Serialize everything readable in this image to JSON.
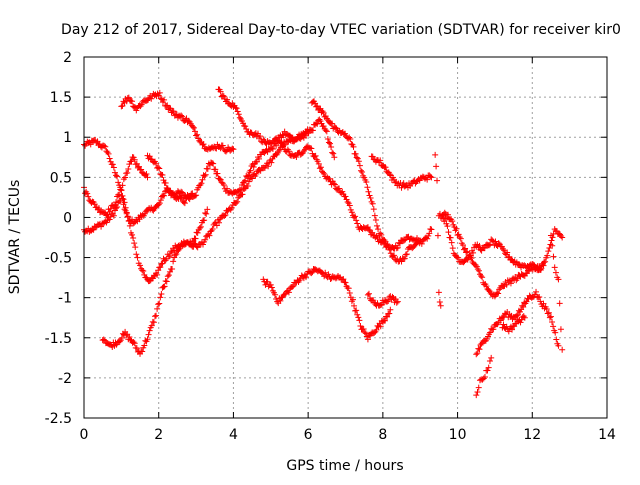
{
  "chart_data": {
    "type": "scatter",
    "title": "Day 212 of 2017, Sidereal Day-to-day VTEC variation (SDTVAR) for receiver kir0",
    "xlabel": "GPS time / hours",
    "ylabel": "SDTVAR / TECUs",
    "xlim": [
      0,
      14
    ],
    "ylim": [
      -2.5,
      2
    ],
    "xticks": [
      "0",
      "2",
      "4",
      "6",
      "8",
      "10",
      "12",
      "14"
    ],
    "yticks": [
      "-2.5",
      "-2",
      "-1.5",
      "-1",
      "-0.5",
      "0",
      "0.5",
      "1",
      "1.5",
      "2"
    ],
    "grid": true,
    "marker": "+",
    "color": "#ff0000",
    "series": [
      {
        "x": [
          0.0,
          0.3,
          0.6,
          0.8,
          1.0,
          1.1,
          1.3,
          1.5,
          1.7
        ],
        "y": [
          0.9,
          0.95,
          0.85,
          0.6,
          0.35,
          0.5,
          0.75,
          0.6,
          0.5
        ]
      },
      {
        "x": [
          0.0,
          0.2,
          0.4,
          0.6,
          0.8,
          1.0,
          1.2,
          1.4,
          1.6,
          1.8,
          2.0,
          2.2,
          2.4,
          2.6,
          2.8,
          3.0,
          3.2,
          3.4,
          3.6,
          3.8,
          4.0,
          4.2,
          4.4,
          4.6,
          4.8,
          5.0,
          5.2,
          5.4,
          5.6,
          5.8,
          6.0,
          6.2,
          6.4,
          6.6,
          6.8,
          7.0,
          7.2,
          7.4,
          7.6,
          7.8,
          8.0,
          8.2,
          8.4,
          8.6,
          8.8,
          9.0
        ],
        "y": [
          -0.15,
          -0.15,
          -0.1,
          -0.05,
          0.05,
          0.25,
          -0.05,
          -0.05,
          0.05,
          0.1,
          0.15,
          0.35,
          0.3,
          0.3,
          0.25,
          0.3,
          0.5,
          0.7,
          0.5,
          0.35,
          0.3,
          0.35,
          0.55,
          0.7,
          0.8,
          0.85,
          0.95,
          0.85,
          0.75,
          0.8,
          0.9,
          0.75,
          0.55,
          0.45,
          0.35,
          0.25,
          0.05,
          -0.15,
          -0.15,
          -0.25,
          -0.3,
          -0.4,
          -0.35,
          -0.25,
          -0.25,
          -0.3
        ]
      },
      {
        "x": [
          0.0,
          0.2,
          0.4,
          0.6,
          0.8,
          1.0,
          1.2,
          1.4,
          1.5,
          1.7,
          1.9,
          2.1,
          2.3,
          2.5,
          2.7,
          2.9,
          3.1,
          3.3
        ],
        "y": [
          0.35,
          0.2,
          0.1,
          0.05,
          0.15,
          0.35,
          -0.05,
          -0.45,
          -0.6,
          -0.8,
          -0.75,
          -0.55,
          -0.45,
          -0.35,
          -0.35,
          -0.3,
          -0.15,
          0.1
        ]
      },
      {
        "x": [
          0.5,
          0.7,
          0.9,
          1.1,
          1.3,
          1.5,
          1.7,
          1.9,
          2.1,
          2.3,
          2.5,
          2.7,
          2.9,
          3.1,
          3.3,
          3.5,
          3.7,
          3.9,
          4.1,
          4.3,
          4.5,
          4.7,
          4.9,
          5.1,
          5.3,
          5.5,
          5.7,
          5.9,
          6.1,
          6.3,
          6.5,
          6.7
        ],
        "y": [
          -1.5,
          -1.6,
          -1.55,
          -1.45,
          -1.55,
          -1.7,
          -1.5,
          -1.25,
          -0.9,
          -0.7,
          -0.4,
          -0.3,
          -0.35,
          -0.35,
          -0.25,
          -0.1,
          0.0,
          0.1,
          0.2,
          0.35,
          0.5,
          0.6,
          0.65,
          0.75,
          0.9,
          0.95,
          1.0,
          1.05,
          1.1,
          1.2,
          1.05,
          0.75
        ]
      },
      {
        "x": [
          1.0,
          1.2,
          1.4,
          1.6,
          1.8,
          2.0,
          2.2,
          2.4,
          2.6,
          2.8,
          3.0,
          3.2,
          3.4,
          3.6,
          3.8,
          4.0
        ],
        "y": [
          1.4,
          1.5,
          1.35,
          1.45,
          1.5,
          1.55,
          1.4,
          1.3,
          1.25,
          1.2,
          1.05,
          0.9,
          0.85,
          0.9,
          0.85,
          0.85
        ]
      },
      {
        "x": [
          1.7,
          1.9,
          2.1,
          2.3,
          2.5,
          2.7,
          2.9
        ],
        "y": [
          0.75,
          0.7,
          0.5,
          0.3,
          0.25,
          0.2,
          0.3
        ]
      },
      {
        "x": [
          3.6,
          3.8,
          4.0,
          4.2,
          4.4,
          4.6,
          4.8,
          5.0,
          5.2,
          5.4,
          5.6,
          5.8,
          6.0
        ],
        "y": [
          1.6,
          1.45,
          1.4,
          1.25,
          1.05,
          1.05,
          0.95,
          0.9,
          1.0,
          1.05,
          0.95,
          1.0,
          1.05
        ]
      },
      {
        "x": [
          4.8,
          5.0,
          5.2,
          5.4,
          5.6,
          5.8,
          6.0,
          6.2,
          6.4,
          6.6,
          6.8,
          7.0,
          7.2,
          7.4,
          7.6,
          7.8,
          8.0,
          8.2
        ],
        "y": [
          -0.8,
          -0.85,
          -1.05,
          -0.95,
          -0.85,
          -0.75,
          -0.7,
          -0.65,
          -0.7,
          -0.75,
          -0.75,
          -0.8,
          -1.05,
          -1.35,
          -1.5,
          -1.4,
          -1.3,
          -1.15
        ]
      },
      {
        "x": [
          6.1,
          6.3,
          6.5,
          6.7,
          6.9,
          7.1,
          7.3,
          7.5,
          7.7,
          7.9,
          8.1,
          8.3,
          8.5,
          8.7,
          8.9,
          9.1,
          9.3
        ],
        "y": [
          1.45,
          1.35,
          1.25,
          1.1,
          1.05,
          1.0,
          0.75,
          0.5,
          0.2,
          -0.2,
          -0.35,
          -0.5,
          -0.55,
          -0.4,
          -0.3,
          -0.3,
          -0.15
        ]
      },
      {
        "x": [
          7.7,
          7.9,
          8.1,
          8.3,
          8.5,
          8.7,
          8.9,
          9.1,
          9.3
        ],
        "y": [
          0.75,
          0.7,
          0.6,
          0.45,
          0.4,
          0.4,
          0.45,
          0.5,
          0.5
        ]
      },
      {
        "x": [
          7.6,
          7.8,
          8.0,
          8.2,
          8.4
        ],
        "y": [
          -0.95,
          -1.1,
          -1.05,
          -1.0,
          -1.05
        ]
      },
      {
        "x": [
          9.5,
          9.7,
          9.9,
          10.1,
          10.3,
          10.5,
          10.7,
          10.9,
          11.1,
          11.3,
          11.5,
          11.7,
          11.9,
          12.1,
          12.3
        ],
        "y": [
          0.05,
          -0.05,
          -0.45,
          -0.55,
          -0.5,
          -0.35,
          -0.4,
          -0.3,
          -0.35,
          -0.45,
          -0.55,
          -0.6,
          -0.6,
          -0.65,
          -0.6
        ]
      },
      {
        "x": [
          9.6,
          9.8,
          10.0,
          10.2,
          10.4,
          10.6,
          10.8,
          11.0,
          11.2,
          11.4,
          11.6,
          11.8,
          12.0,
          12.2,
          12.4,
          12.6,
          12.8
        ],
        "y": [
          0.05,
          0.0,
          -0.2,
          -0.4,
          -0.55,
          -0.7,
          -0.9,
          -1.0,
          -0.85,
          -0.8,
          -0.75,
          -0.7,
          -0.6,
          -0.65,
          -0.5,
          -0.15,
          -0.25
        ]
      },
      {
        "x": [
          10.5,
          10.7,
          10.9,
          11.1,
          11.3,
          11.5,
          11.7,
          11.9,
          12.1,
          12.3,
          12.5,
          12.7
        ],
        "y": [
          -1.7,
          -1.55,
          -1.4,
          -1.3,
          -1.2,
          -1.25,
          -1.15,
          -1.0,
          -0.95,
          -1.1,
          -1.25,
          -1.6
        ]
      },
      {
        "x": [
          10.5,
          10.6,
          10.7,
          10.8,
          10.9
        ],
        "y": [
          -2.2,
          -2.05,
          -2.0,
          -1.9,
          -1.75
        ]
      },
      {
        "x": [
          11.2,
          11.4,
          11.6,
          11.8
        ],
        "y": [
          -1.35,
          -1.4,
          -1.3,
          -1.25
        ]
      },
      {
        "x": [
          12.5,
          12.6,
          12.7,
          12.8
        ],
        "y": [
          -0.2,
          -0.6,
          -0.8,
          -1.65
        ]
      },
      {
        "x": [
          9.4,
          9.45,
          9.5,
          9.55
        ],
        "y": [
          0.8,
          0.45,
          -0.95,
          -1.1
        ]
      }
    ]
  }
}
